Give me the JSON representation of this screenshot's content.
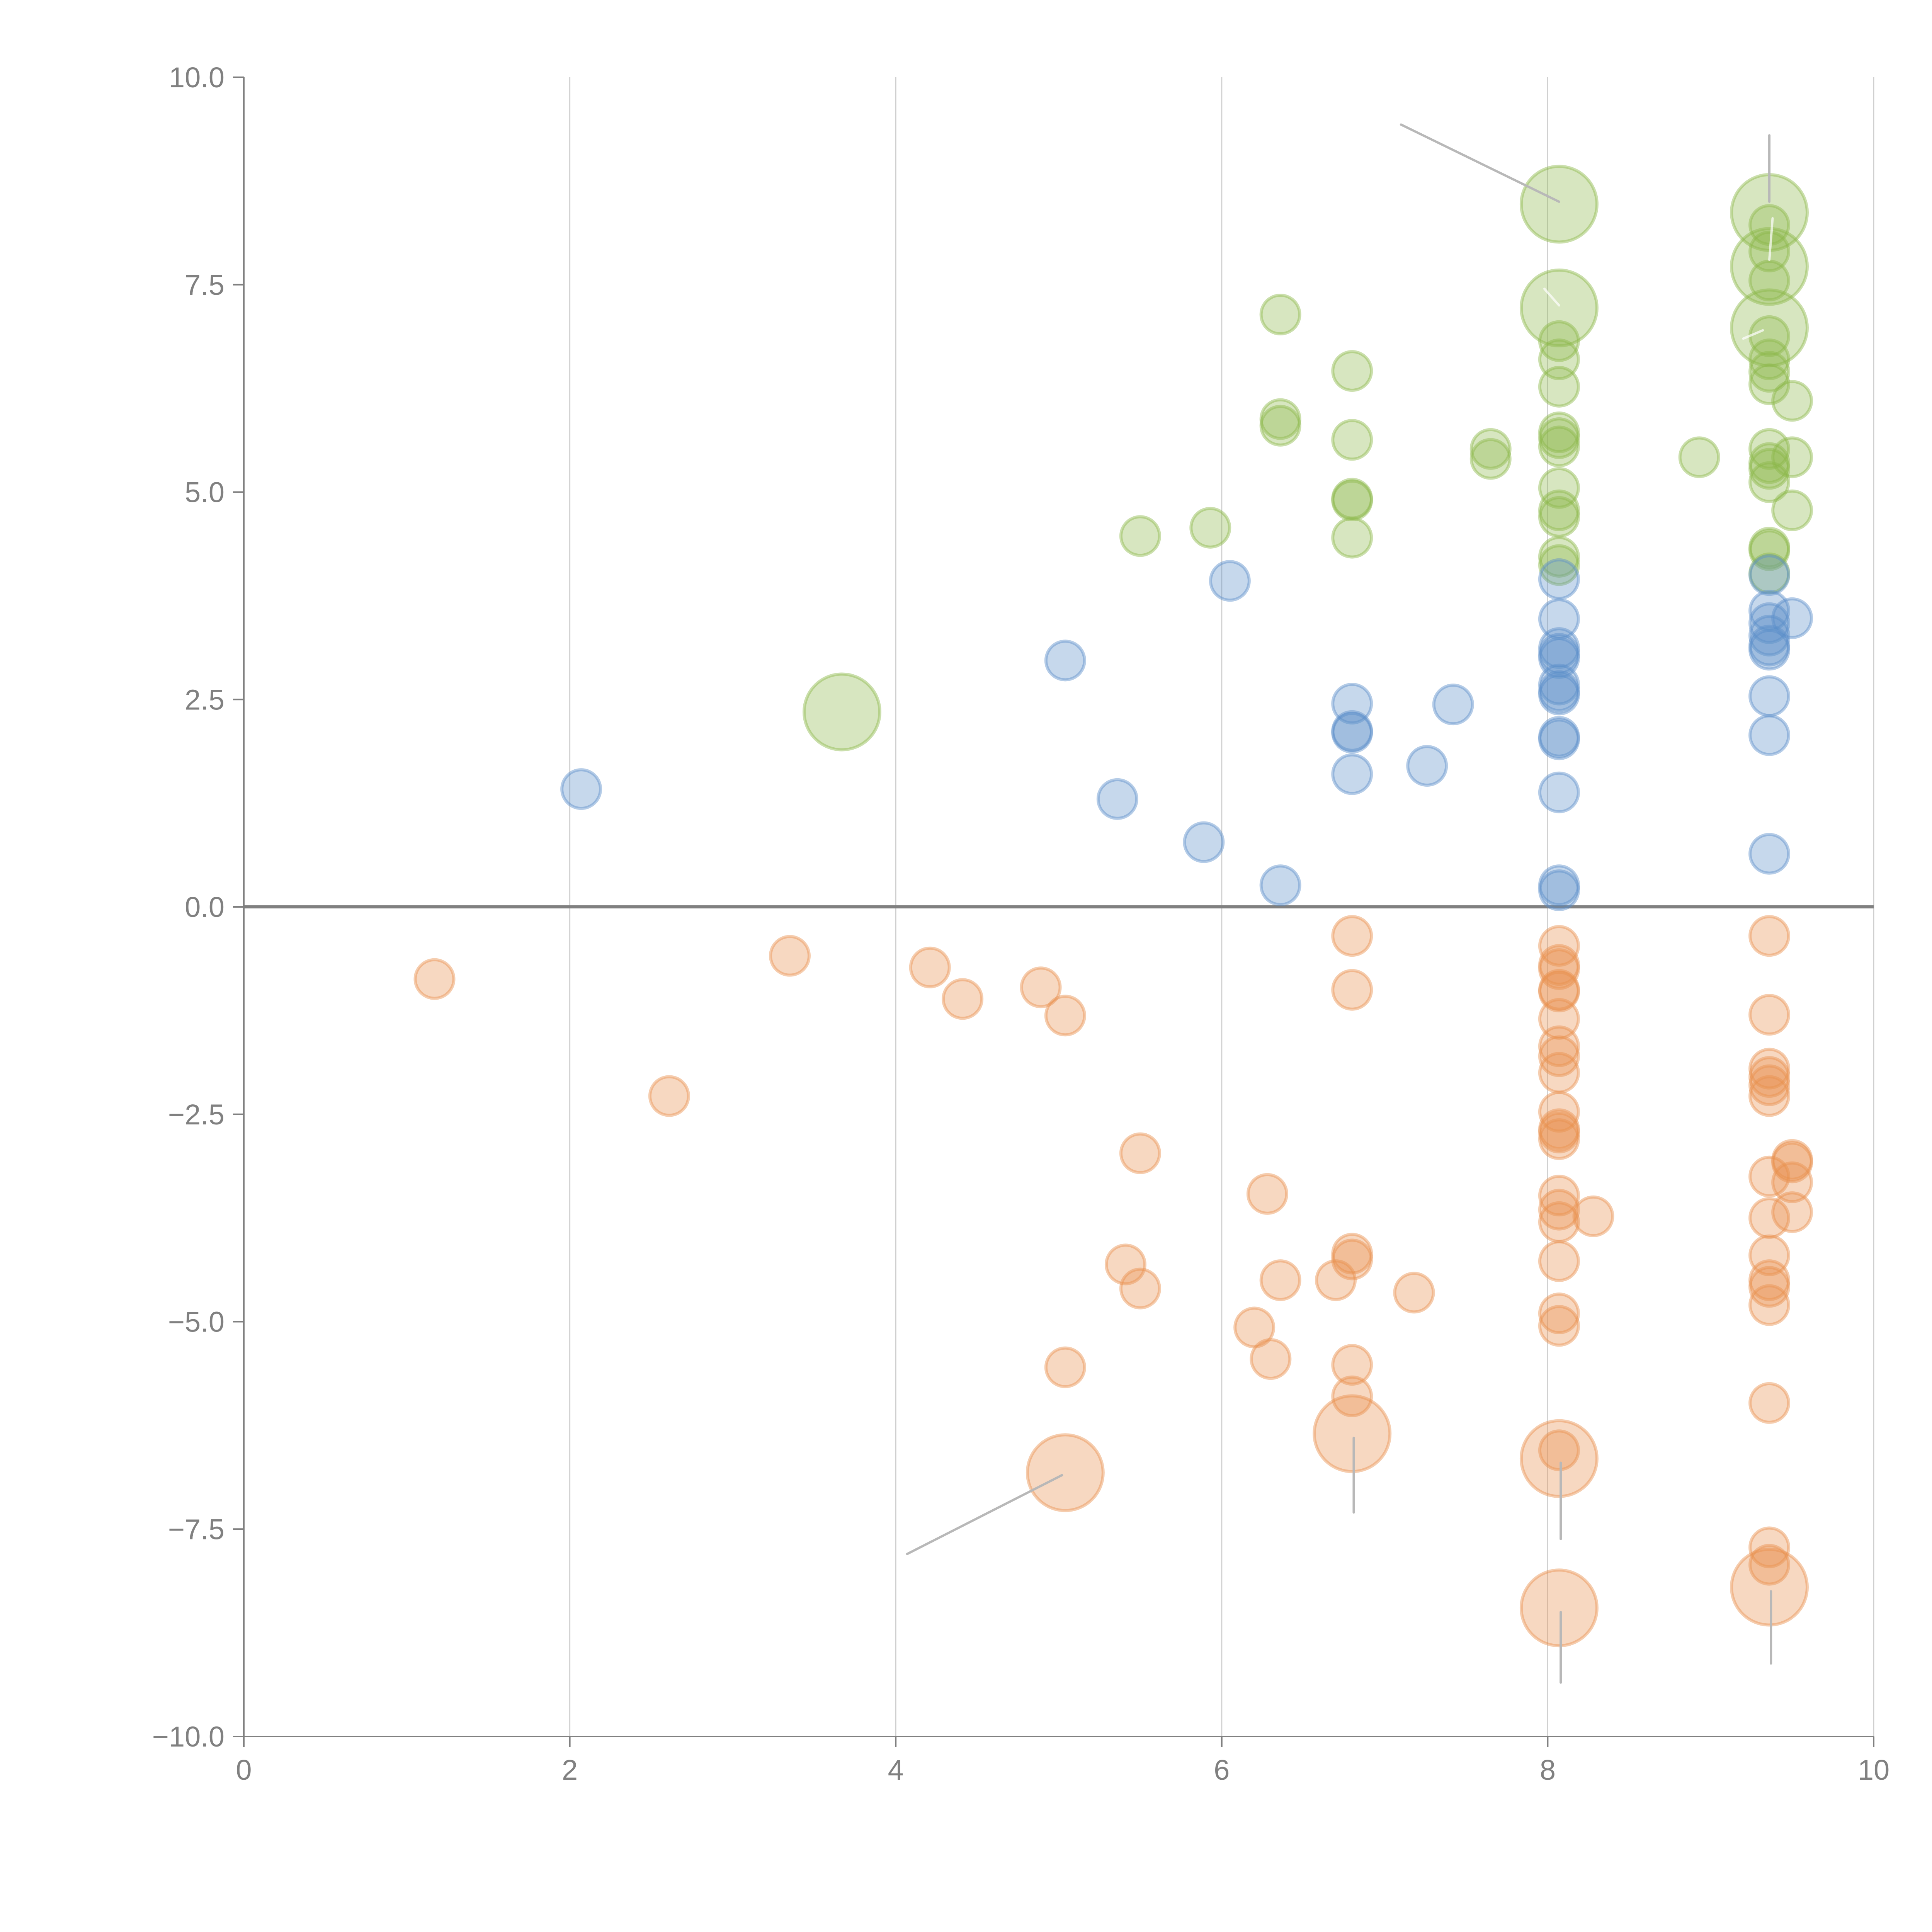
{
  "chart_data": {
    "type": "scatter",
    "subtype": "bubble",
    "title": "",
    "xlabel": "",
    "ylabel": "",
    "xlim": [
      0,
      10
    ],
    "ylim": [
      -10,
      10
    ],
    "x_ticks": [
      "0",
      "2",
      "4",
      "6",
      "8",
      "10"
    ],
    "x_tick_values": [
      0,
      2,
      4,
      6,
      8,
      10
    ],
    "y_ticks": [
      "10.0",
      "7.5",
      "5.0",
      "2.5",
      "0.0",
      "−2.5",
      "−5.0",
      "−7.5",
      "−10.0"
    ],
    "y_tick_values": [
      10,
      7.5,
      5,
      2.5,
      0,
      -2.5,
      -5,
      -7.5,
      -10
    ],
    "grid": {
      "x": true,
      "y": false
    },
    "reference_line_y": 0,
    "legend": "none",
    "series": [
      {
        "name": "green",
        "color": "#8cb84a",
        "points": [
          [
            3.67,
            2.35,
            3
          ],
          [
            5.5,
            4.47,
            1
          ],
          [
            5.93,
            4.57,
            1
          ],
          [
            6.36,
            7.14,
            1
          ],
          [
            6.36,
            5.88,
            1
          ],
          [
            6.36,
            5.8,
            1
          ],
          [
            6.8,
            6.46,
            1
          ],
          [
            6.8,
            5.63,
            1
          ],
          [
            6.8,
            4.92,
            1
          ],
          [
            6.8,
            4.9,
            1
          ],
          [
            6.8,
            4.45,
            1
          ],
          [
            7.65,
            5.52,
            1
          ],
          [
            7.65,
            5.4,
            1
          ],
          [
            8.93,
            5.42,
            1
          ],
          [
            8.07,
            8.47,
            3
          ],
          [
            8.07,
            7.22,
            3
          ],
          [
            8.07,
            6.82,
            1
          ],
          [
            8.07,
            6.6,
            1
          ],
          [
            8.07,
            6.27,
            1
          ],
          [
            8.07,
            5.72,
            1
          ],
          [
            8.07,
            5.65,
            1
          ],
          [
            8.07,
            5.55,
            1
          ],
          [
            8.07,
            5.05,
            1
          ],
          [
            8.07,
            4.78,
            1
          ],
          [
            8.07,
            4.7,
            1
          ],
          [
            8.07,
            4.22,
            1
          ],
          [
            8.07,
            4.12,
            1
          ],
          [
            9.36,
            8.37,
            3
          ],
          [
            9.36,
            8.22,
            1
          ],
          [
            9.36,
            7.9,
            1
          ],
          [
            9.36,
            7.72,
            3
          ],
          [
            9.36,
            7.55,
            1
          ],
          [
            9.36,
            6.98,
            3
          ],
          [
            9.36,
            6.88,
            1
          ],
          [
            9.36,
            6.6,
            1
          ],
          [
            9.36,
            6.45,
            1
          ],
          [
            9.36,
            6.3,
            1
          ],
          [
            9.36,
            5.52,
            1
          ],
          [
            9.36,
            5.35,
            1
          ],
          [
            9.36,
            5.28,
            1
          ],
          [
            9.36,
            5.12,
            1
          ],
          [
            9.36,
            4.33,
            1
          ],
          [
            9.36,
            4.3,
            1
          ],
          [
            9.36,
            4.02,
            1
          ],
          [
            9.5,
            6.1,
            1
          ],
          [
            9.5,
            5.42,
            1
          ],
          [
            9.5,
            4.78,
            1
          ]
        ]
      },
      {
        "name": "blue",
        "color": "#5b8ec9",
        "points": [
          [
            2.07,
            1.42,
            1
          ],
          [
            5.04,
            2.97,
            1
          ],
          [
            5.36,
            1.3,
            1
          ],
          [
            5.89,
            0.78,
            1
          ],
          [
            6.05,
            3.93,
            1
          ],
          [
            6.36,
            0.26,
            1
          ],
          [
            6.8,
            2.45,
            1
          ],
          [
            6.8,
            2.12,
            1
          ],
          [
            6.8,
            2.1,
            1
          ],
          [
            6.8,
            1.6,
            1
          ],
          [
            7.26,
            1.7,
            1
          ],
          [
            7.42,
            2.44,
            1
          ],
          [
            8.07,
            3.95,
            1
          ],
          [
            8.07,
            3.47,
            1
          ],
          [
            8.07,
            3.12,
            1
          ],
          [
            8.07,
            3.05,
            1
          ],
          [
            8.07,
            3.0,
            1
          ],
          [
            8.07,
            2.68,
            1
          ],
          [
            8.07,
            2.6,
            1
          ],
          [
            8.07,
            2.56,
            1
          ],
          [
            8.07,
            2.05,
            1
          ],
          [
            8.07,
            2.02,
            1
          ],
          [
            8.07,
            1.38,
            1
          ],
          [
            8.07,
            0.26,
            1
          ],
          [
            8.07,
            0.2,
            1
          ],
          [
            9.36,
            4.0,
            1
          ],
          [
            9.36,
            3.57,
            1
          ],
          [
            9.36,
            3.42,
            1
          ],
          [
            9.36,
            3.27,
            1
          ],
          [
            9.36,
            3.15,
            1
          ],
          [
            9.36,
            3.1,
            1
          ],
          [
            9.36,
            2.54,
            1
          ],
          [
            9.36,
            2.07,
            1
          ],
          [
            9.36,
            0.64,
            1
          ],
          [
            9.5,
            3.48,
            1
          ]
        ]
      },
      {
        "name": "orange",
        "color": "#e8904e",
        "points": [
          [
            1.17,
            -0.87,
            1
          ],
          [
            2.61,
            -2.28,
            1
          ],
          [
            3.35,
            -0.59,
            1
          ],
          [
            4.21,
            -0.73,
            1
          ],
          [
            4.41,
            -1.11,
            1
          ],
          [
            4.89,
            -0.97,
            1
          ],
          [
            5.04,
            -1.31,
            1
          ],
          [
            5.04,
            -5.55,
            1
          ],
          [
            5.04,
            -6.82,
            3
          ],
          [
            5.41,
            -4.31,
            1
          ],
          [
            5.5,
            -2.97,
            1
          ],
          [
            5.5,
            -4.6,
            1
          ],
          [
            6.2,
            -5.07,
            1
          ],
          [
            6.28,
            -3.46,
            1
          ],
          [
            6.3,
            -5.45,
            1
          ],
          [
            6.36,
            -4.5,
            1
          ],
          [
            6.7,
            -4.5,
            1
          ],
          [
            6.8,
            -0.35,
            1
          ],
          [
            6.8,
            -1.0,
            1
          ],
          [
            6.8,
            -4.18,
            1
          ],
          [
            6.8,
            -4.25,
            1
          ],
          [
            6.8,
            -5.52,
            1
          ],
          [
            6.8,
            -5.9,
            1
          ],
          [
            6.8,
            -6.35,
            3
          ],
          [
            7.18,
            -4.65,
            1
          ],
          [
            8.07,
            -0.47,
            1
          ],
          [
            8.07,
            -0.7,
            1
          ],
          [
            8.07,
            -0.75,
            1
          ],
          [
            8.07,
            -1.0,
            1
          ],
          [
            8.07,
            -1.02,
            1
          ],
          [
            8.07,
            -1.35,
            1
          ],
          [
            8.07,
            -1.68,
            1
          ],
          [
            8.07,
            -1.8,
            1
          ],
          [
            8.07,
            -2.0,
            1
          ],
          [
            8.07,
            -2.47,
            1
          ],
          [
            8.07,
            -2.68,
            1
          ],
          [
            8.07,
            -2.72,
            1
          ],
          [
            8.07,
            -2.8,
            1
          ],
          [
            8.07,
            -3.48,
            1
          ],
          [
            8.07,
            -3.65,
            1
          ],
          [
            8.07,
            -3.8,
            1
          ],
          [
            8.07,
            -4.27,
            1
          ],
          [
            8.07,
            -4.9,
            1
          ],
          [
            8.07,
            -5.05,
            1
          ],
          [
            8.07,
            -6.55,
            1
          ],
          [
            8.07,
            -6.65,
            3
          ],
          [
            8.07,
            -8.45,
            3
          ],
          [
            8.28,
            -3.73,
            1
          ],
          [
            9.36,
            -0.35,
            1
          ],
          [
            9.36,
            -1.3,
            1
          ],
          [
            9.36,
            -1.95,
            1
          ],
          [
            9.36,
            -2.05,
            1
          ],
          [
            9.36,
            -2.15,
            1
          ],
          [
            9.36,
            -2.28,
            1
          ],
          [
            9.36,
            -3.25,
            1
          ],
          [
            9.36,
            -3.75,
            1
          ],
          [
            9.36,
            -4.2,
            1
          ],
          [
            9.36,
            -4.5,
            1
          ],
          [
            9.36,
            -4.58,
            1
          ],
          [
            9.36,
            -4.8,
            1
          ],
          [
            9.36,
            -5.98,
            1
          ],
          [
            9.36,
            -7.72,
            1
          ],
          [
            9.36,
            -7.93,
            1
          ],
          [
            9.36,
            -8.2,
            3
          ],
          [
            9.5,
            -3.05,
            1
          ],
          [
            9.5,
            -3.08,
            1
          ],
          [
            9.5,
            -3.32,
            1
          ],
          [
            9.5,
            -3.68,
            1
          ]
        ]
      }
    ],
    "annotations": [
      {
        "style": "gray",
        "from": [
          7.1,
          9.43
        ],
        "to": [
          8.07,
          8.5
        ]
      },
      {
        "style": "gray",
        "from": [
          9.36,
          9.3
        ],
        "to": [
          9.36,
          8.5
        ]
      },
      {
        "style": "white",
        "from": [
          9.38,
          8.3
        ],
        "to": [
          9.36,
          7.8
        ]
      },
      {
        "style": "white",
        "from": [
          7.98,
          7.45
        ],
        "to": [
          8.07,
          7.25
        ]
      },
      {
        "style": "white",
        "from": [
          9.2,
          6.85
        ],
        "to": [
          9.32,
          6.95
        ]
      },
      {
        "style": "gray",
        "from": [
          4.07,
          -7.8
        ],
        "to": [
          5.02,
          -6.85
        ]
      },
      {
        "style": "gray",
        "from": [
          6.81,
          -7.3
        ],
        "to": [
          6.81,
          -6.4
        ]
      },
      {
        "style": "gray",
        "from": [
          8.08,
          -7.62
        ],
        "to": [
          8.08,
          -6.7
        ]
      },
      {
        "style": "gray",
        "from": [
          8.08,
          -9.35
        ],
        "to": [
          8.08,
          -8.5
        ]
      },
      {
        "style": "gray",
        "from": [
          9.37,
          -9.12
        ],
        "to": [
          9.37,
          -8.25
        ]
      }
    ]
  }
}
